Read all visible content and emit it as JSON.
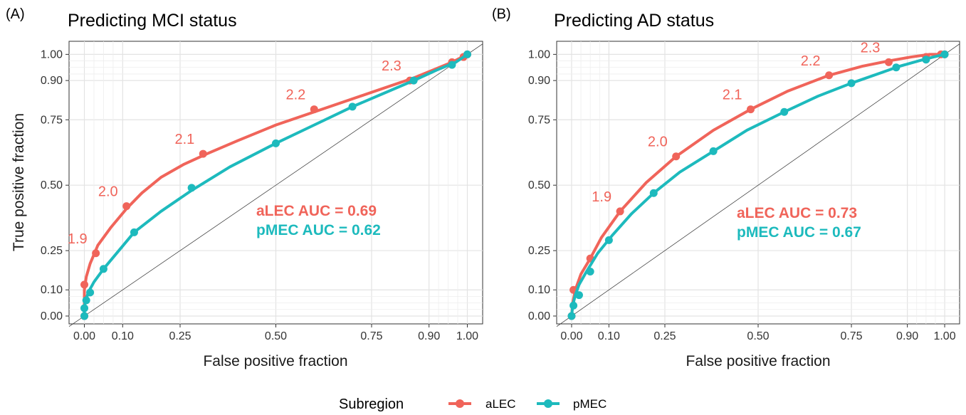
{
  "legend": {
    "title": "Subregion",
    "items": [
      {
        "label": "aLEC",
        "color": "#F0645A"
      },
      {
        "label": "pMEC",
        "color": "#1DBABD"
      }
    ]
  },
  "chart_data": [
    {
      "type": "line",
      "panel_letter": "(A)",
      "title": "Predicting MCI status",
      "xlabel": "False positive fraction",
      "ylabel": "True positive fraction",
      "xlim": [
        -0.04,
        1.04
      ],
      "ylim": [
        -0.03,
        1.05
      ],
      "grid": true,
      "x_ticks": [
        0.0,
        0.1,
        0.25,
        0.5,
        0.75,
        0.9,
        1.0
      ],
      "x_tick_labels": [
        "0.00",
        "0.10",
        "0.25",
        "0.50",
        "0.75",
        "0.90",
        "1.00"
      ],
      "y_ticks": [
        0.0,
        0.1,
        0.25,
        0.5,
        0.75,
        0.9,
        1.0
      ],
      "y_tick_labels": [
        "0.00",
        "0.10",
        "0.25",
        "0.50",
        "0.75",
        "0.90",
        "1.00"
      ],
      "diagonal_reference": true,
      "series": [
        {
          "name": "aLEC",
          "color": "#F0645A",
          "x": [
            0.0,
            0.0,
            0.0,
            0.005,
            0.015,
            0.035,
            0.07,
            0.11,
            0.15,
            0.2,
            0.26,
            0.32,
            0.4,
            0.5,
            0.6,
            0.7,
            0.8,
            0.86,
            0.91,
            0.96,
            1.0
          ],
          "y": [
            0.0,
            0.05,
            0.1,
            0.15,
            0.2,
            0.27,
            0.34,
            0.41,
            0.47,
            0.53,
            0.58,
            0.62,
            0.67,
            0.73,
            0.78,
            0.83,
            0.88,
            0.91,
            0.94,
            0.97,
            1.0
          ],
          "markers_x": [
            0.0,
            0.0,
            0.03,
            0.11,
            0.31,
            0.6,
            0.85,
            0.96,
            0.99,
            1.0
          ],
          "markers_y": [
            0.0,
            0.12,
            0.24,
            0.42,
            0.62,
            0.79,
            0.9,
            0.97,
            0.99,
            1.0
          ],
          "labels": [
            {
              "text": "1.9",
              "x": 0.03,
              "y": 0.24
            },
            {
              "text": "2.0",
              "x": 0.11,
              "y": 0.42
            },
            {
              "text": "2.1",
              "x": 0.31,
              "y": 0.62
            },
            {
              "text": "2.2",
              "x": 0.6,
              "y": 0.79
            },
            {
              "text": "2.3",
              "x": 0.85,
              "y": 0.9
            }
          ],
          "auc_text": "aLEC AUC = 0.69"
        },
        {
          "name": "pMEC",
          "color": "#1DBABD",
          "x": [
            0.0,
            0.0,
            0.002,
            0.01,
            0.025,
            0.05,
            0.09,
            0.13,
            0.2,
            0.28,
            0.38,
            0.5,
            0.6,
            0.7,
            0.78,
            0.86,
            0.92,
            0.97,
            1.0
          ],
          "y": [
            0.0,
            0.03,
            0.05,
            0.09,
            0.13,
            0.18,
            0.25,
            0.32,
            0.4,
            0.48,
            0.57,
            0.66,
            0.73,
            0.8,
            0.85,
            0.9,
            0.94,
            0.97,
            1.0
          ],
          "markers_x": [
            0.0,
            0.0,
            0.005,
            0.015,
            0.05,
            0.13,
            0.28,
            0.5,
            0.7,
            0.86,
            0.96,
            1.0
          ],
          "markers_y": [
            0.0,
            0.03,
            0.06,
            0.09,
            0.18,
            0.32,
            0.49,
            0.66,
            0.8,
            0.9,
            0.96,
            1.0
          ],
          "labels": [],
          "auc_text": "pMEC AUC = 0.62"
        }
      ]
    },
    {
      "type": "line",
      "panel_letter": "(B)",
      "title": "Predicting AD status",
      "xlabel": "False positive fraction",
      "ylabel": "",
      "xlim": [
        -0.04,
        1.04
      ],
      "ylim": [
        -0.03,
        1.05
      ],
      "grid": true,
      "x_ticks": [
        0.0,
        0.1,
        0.25,
        0.5,
        0.75,
        0.9,
        1.0
      ],
      "x_tick_labels": [
        "0.00",
        "0.10",
        "0.25",
        "0.50",
        "0.75",
        "0.90",
        "1.00"
      ],
      "y_ticks": [
        0.0,
        0.1,
        0.25,
        0.5,
        0.75,
        0.9,
        1.0
      ],
      "y_tick_labels": [
        "0.00",
        "0.10",
        "0.25",
        "0.50",
        "0.75",
        "0.90",
        "1.00"
      ],
      "diagonal_reference": true,
      "series": [
        {
          "name": "aLEC",
          "color": "#F0645A",
          "x": [
            0.0,
            0.003,
            0.01,
            0.025,
            0.05,
            0.08,
            0.13,
            0.2,
            0.28,
            0.38,
            0.48,
            0.58,
            0.69,
            0.78,
            0.85,
            0.91,
            0.96,
            1.0
          ],
          "y": [
            0.0,
            0.05,
            0.1,
            0.16,
            0.22,
            0.3,
            0.4,
            0.51,
            0.61,
            0.71,
            0.79,
            0.86,
            0.92,
            0.955,
            0.975,
            0.99,
            1.0,
            1.0
          ],
          "markers_x": [
            0.0,
            0.005,
            0.05,
            0.13,
            0.28,
            0.48,
            0.69,
            0.85,
            0.95,
            0.99,
            1.0
          ],
          "markers_y": [
            0.0,
            0.1,
            0.22,
            0.4,
            0.61,
            0.79,
            0.92,
            0.97,
            0.99,
            1.0,
            1.0
          ],
          "labels": [
            {
              "text": "1.9",
              "x": 0.13,
              "y": 0.4
            },
            {
              "text": "2.0",
              "x": 0.28,
              "y": 0.61
            },
            {
              "text": "2.1",
              "x": 0.48,
              "y": 0.79
            },
            {
              "text": "2.2",
              "x": 0.69,
              "y": 0.92
            },
            {
              "text": "2.3",
              "x": 0.85,
              "y": 0.97
            }
          ],
          "auc_text": "aLEC AUC = 0.73"
        },
        {
          "name": "pMEC",
          "color": "#1DBABD",
          "x": [
            0.0,
            0.003,
            0.01,
            0.02,
            0.04,
            0.07,
            0.11,
            0.16,
            0.22,
            0.29,
            0.38,
            0.47,
            0.57,
            0.66,
            0.75,
            0.83,
            0.88,
            0.93,
            0.97,
            1.0
          ],
          "y": [
            0.0,
            0.04,
            0.08,
            0.12,
            0.17,
            0.24,
            0.31,
            0.39,
            0.47,
            0.55,
            0.63,
            0.71,
            0.78,
            0.84,
            0.89,
            0.93,
            0.955,
            0.975,
            0.99,
            1.0
          ],
          "markers_x": [
            0.0,
            0.005,
            0.02,
            0.05,
            0.1,
            0.22,
            0.38,
            0.57,
            0.75,
            0.87,
            0.95,
            1.0
          ],
          "markers_y": [
            0.0,
            0.04,
            0.08,
            0.17,
            0.29,
            0.47,
            0.63,
            0.78,
            0.89,
            0.95,
            0.98,
            1.0
          ],
          "labels": [],
          "auc_text": "pMEC AUC = 0.67"
        }
      ]
    }
  ]
}
